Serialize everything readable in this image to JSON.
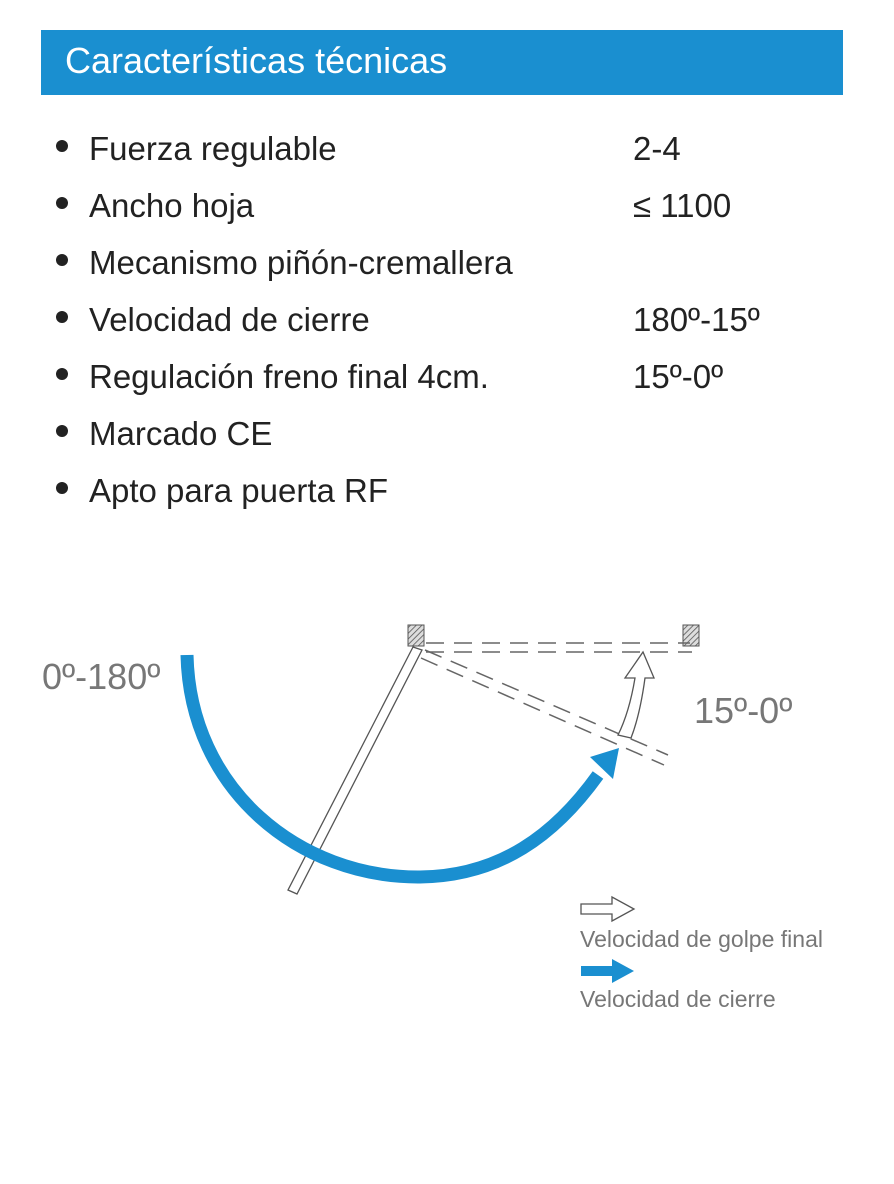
{
  "header": {
    "title": "Características técnicas"
  },
  "specs": [
    {
      "label": "Fuerza regulable",
      "value": "2-4"
    },
    {
      "label": "Ancho hoja",
      "value": "≤ 1100"
    },
    {
      "label": "Mecanismo piñón-cremallera",
      "value": ""
    },
    {
      "label": "Velocidad de cierre",
      "value": "180º-15º"
    },
    {
      "label": "Regulación freno final 4cm.",
      "value": "15º-0º"
    },
    {
      "label": "Marcado CE",
      "value": ""
    },
    {
      "label": "Apto para puerta RF",
      "value": ""
    }
  ],
  "diagram": {
    "angle_closing": "0º-180º",
    "angle_final": "15º-0º",
    "legend": [
      {
        "label": "Velocidad de golpe final",
        "icon": "outline-arrow"
      },
      {
        "label": "Velocidad de cierre",
        "icon": "blue-arrow"
      }
    ]
  },
  "colors": {
    "accent": "#1a8fd0"
  }
}
